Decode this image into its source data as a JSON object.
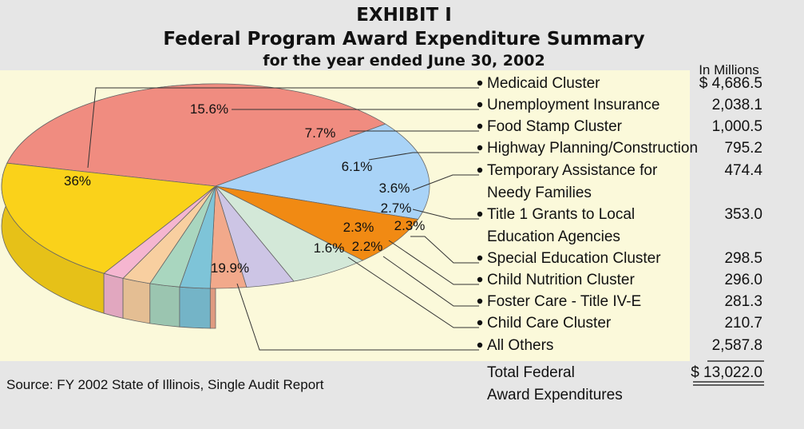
{
  "header": {
    "exhibit": "EXHIBIT I",
    "title": "Federal Program Award Expenditure Summary",
    "subtitle": "for the year ended June 30, 2002",
    "units_label": "In Millions"
  },
  "source": "Source: FY 2002 State of Illinois, Single Audit Report",
  "total": {
    "label_line1": "Total Federal",
    "label_line2": "Award Expenditures",
    "value": "$ 13,022.0"
  },
  "colors": {
    "background": "#e6e6e6",
    "panel": "#fbf9da",
    "medicaid": "#f08c80",
    "unemployment": "#a9d3f7",
    "food_stamp": "#f18a13",
    "highway": "#d3e8d8",
    "tanf": "#cdc5e5",
    "title1": "#f2a98b",
    "special_ed": "#7ec4d8",
    "child_nutrition": "#a9d6bf",
    "foster_care": "#f8cfa0",
    "child_care": "#f5b6d0",
    "all_others": "#fad21a"
  },
  "chart_data": {
    "type": "pie",
    "title": "Federal Program Award Expenditure Summary",
    "subtitle": "for the year ended June 30, 2002",
    "units": "In Millions",
    "slices": [
      {
        "name": "Medicaid Cluster",
        "value": 4686.5,
        "value_text": "$ 4,686.5",
        "percent": "36%",
        "color": "#f08c80"
      },
      {
        "name": "Unemployment Insurance",
        "value": 2038.1,
        "value_text": "2,038.1",
        "percent": "15.6%",
        "color": "#a9d3f7"
      },
      {
        "name": "Food Stamp Cluster",
        "value": 1000.5,
        "value_text": "1,000.5",
        "percent": "7.7%",
        "color": "#f18a13"
      },
      {
        "name": "Highway Planning/Construction",
        "value": 795.2,
        "value_text": "795.2",
        "percent": "6.1%",
        "color": "#d3e8d8"
      },
      {
        "name": "Temporary Assistance for Needy Families",
        "line1": "Temporary Assistance for",
        "line2": "Needy Families",
        "value": 474.4,
        "value_text": "474.4",
        "percent": "3.6%",
        "color": "#cdc5e5"
      },
      {
        "name": "Title 1 Grants to Local Education Agencies",
        "line1": "Title 1 Grants to Local",
        "line2": "Education Agencies",
        "value": 353.0,
        "value_text": "353.0",
        "percent": "2.7%",
        "color": "#f2a98b"
      },
      {
        "name": "Special Education Cluster",
        "value": 298.5,
        "value_text": "298.5",
        "percent": "2.3%",
        "color": "#7ec4d8"
      },
      {
        "name": "Child Nutrition Cluster",
        "value": 296.0,
        "value_text": "296.0",
        "percent": "2.3%",
        "color": "#a9d6bf"
      },
      {
        "name": "Foster Care - Title IV-E",
        "value": 281.3,
        "value_text": "281.3",
        "percent": "2.2%",
        "color": "#f8cfa0"
      },
      {
        "name": "Child Care Cluster",
        "value": 210.7,
        "value_text": "210.7",
        "percent": "1.6%",
        "color": "#f5b6d0"
      },
      {
        "name": "All Others",
        "value": 2587.8,
        "value_text": "2,587.8",
        "percent": "19.9%",
        "color": "#fad21a"
      }
    ]
  }
}
